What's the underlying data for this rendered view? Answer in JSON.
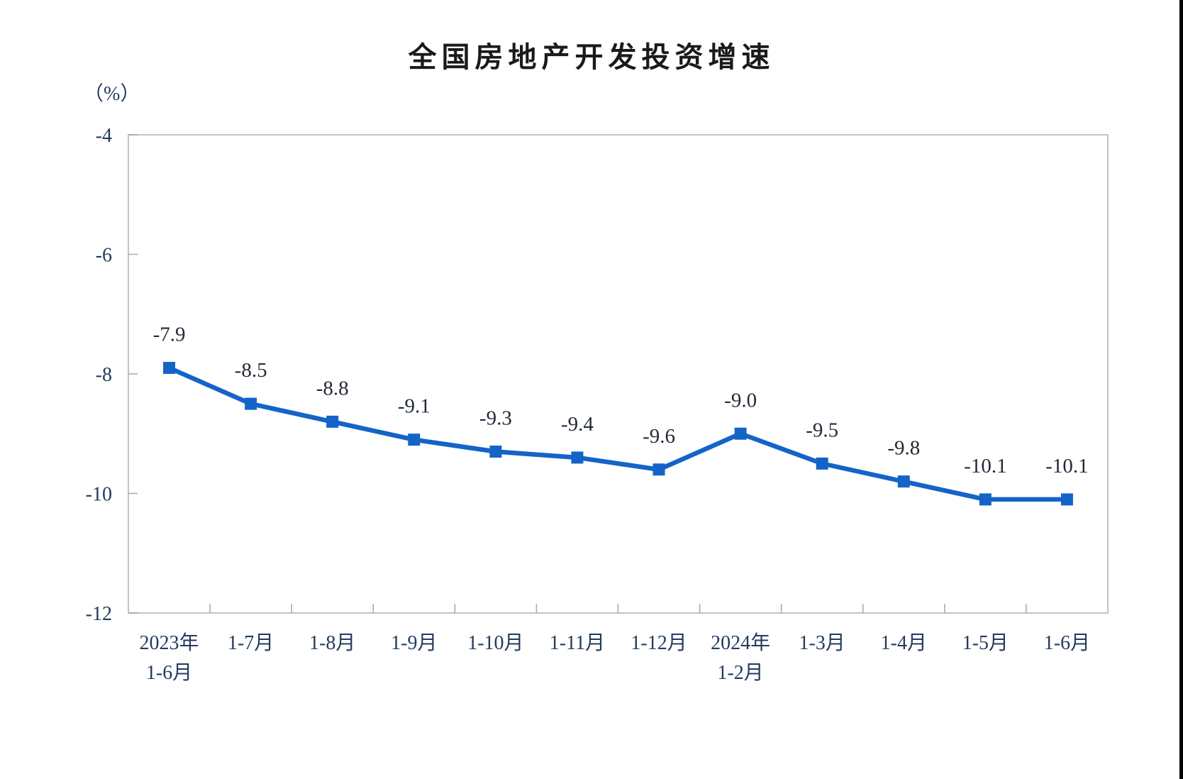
{
  "chart_data": {
    "type": "line",
    "title": "全国房地产开发投资增速",
    "unit_label": "（%）",
    "ylim": [
      -12,
      -4
    ],
    "y_ticks": [
      -4,
      -6,
      -8,
      -10,
      -12
    ],
    "y_tick_labels": [
      "-4",
      "-6",
      "-8",
      "-10",
      "-12"
    ],
    "grid": false,
    "legend": "none",
    "categories": [
      {
        "line1": "2023年",
        "line2": "1-6月"
      },
      {
        "line1": "1-7月"
      },
      {
        "line1": "1-8月"
      },
      {
        "line1": "1-9月"
      },
      {
        "line1": "1-10月"
      },
      {
        "line1": "1-11月"
      },
      {
        "line1": "1-12月"
      },
      {
        "line1": "2024年",
        "line2": "1-2月"
      },
      {
        "line1": "1-3月"
      },
      {
        "line1": "1-4月"
      },
      {
        "line1": "1-5月"
      },
      {
        "line1": "1-6月"
      }
    ],
    "series": [
      {
        "values": [
          -7.9,
          -8.5,
          -8.8,
          -9.1,
          -9.3,
          -9.4,
          -9.6,
          -9.0,
          -9.5,
          -9.8,
          -10.1,
          -10.1
        ],
        "data_labels": [
          "-7.9",
          "-8.5",
          "-8.8",
          "-9.1",
          "-9.3",
          "-9.4",
          "-9.6",
          "-9.0",
          "-9.5",
          "-9.8",
          "-10.1",
          "-10.1"
        ]
      }
    ],
    "colors": {
      "line": "#1464c8",
      "marker": "#1464c8",
      "axis_text": "#233b5f",
      "data_label_text": "#222a38",
      "plot_border": "#c4c4c4",
      "tick": "#a8a8a8",
      "title_text": "#1a1a1a",
      "background": "#ffffff",
      "screen_edge_bar": "#000000"
    }
  }
}
